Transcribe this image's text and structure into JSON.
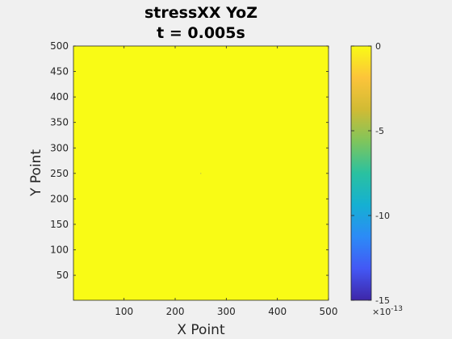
{
  "chart_data": {
    "type": "heatmap",
    "title_lines": [
      "stressXX YoZ",
      "t = 0.005s"
    ],
    "xlabel": "X Point",
    "ylabel": "Y Point",
    "xlim": [
      1,
      500
    ],
    "ylim": [
      1,
      500
    ],
    "x_ticks": [
      100,
      200,
      300,
      400,
      500
    ],
    "y_ticks": [
      50,
      100,
      150,
      200,
      250,
      300,
      350,
      400,
      450,
      500
    ],
    "field_value": 0,
    "center_point": {
      "x": 250,
      "y": 250
    },
    "colormap": "parula",
    "colormap_stops": [
      "#3e26a8",
      "#4358f5",
      "#2c8bf6",
      "#15b0d2",
      "#2ac1a0",
      "#7fc55c",
      "#d1bb34",
      "#fcc43a",
      "#f9fb15"
    ],
    "colorbar": {
      "clim": [
        -15,
        0
      ],
      "ticks": [
        0,
        -5,
        -10,
        -15
      ],
      "tick_labels": [
        "0",
        "-5",
        "-10",
        "-15"
      ],
      "exponent_base": "×10",
      "exponent": "-13"
    },
    "colors": {
      "field": "#f9fb15",
      "background": "#f0f0f0"
    }
  }
}
